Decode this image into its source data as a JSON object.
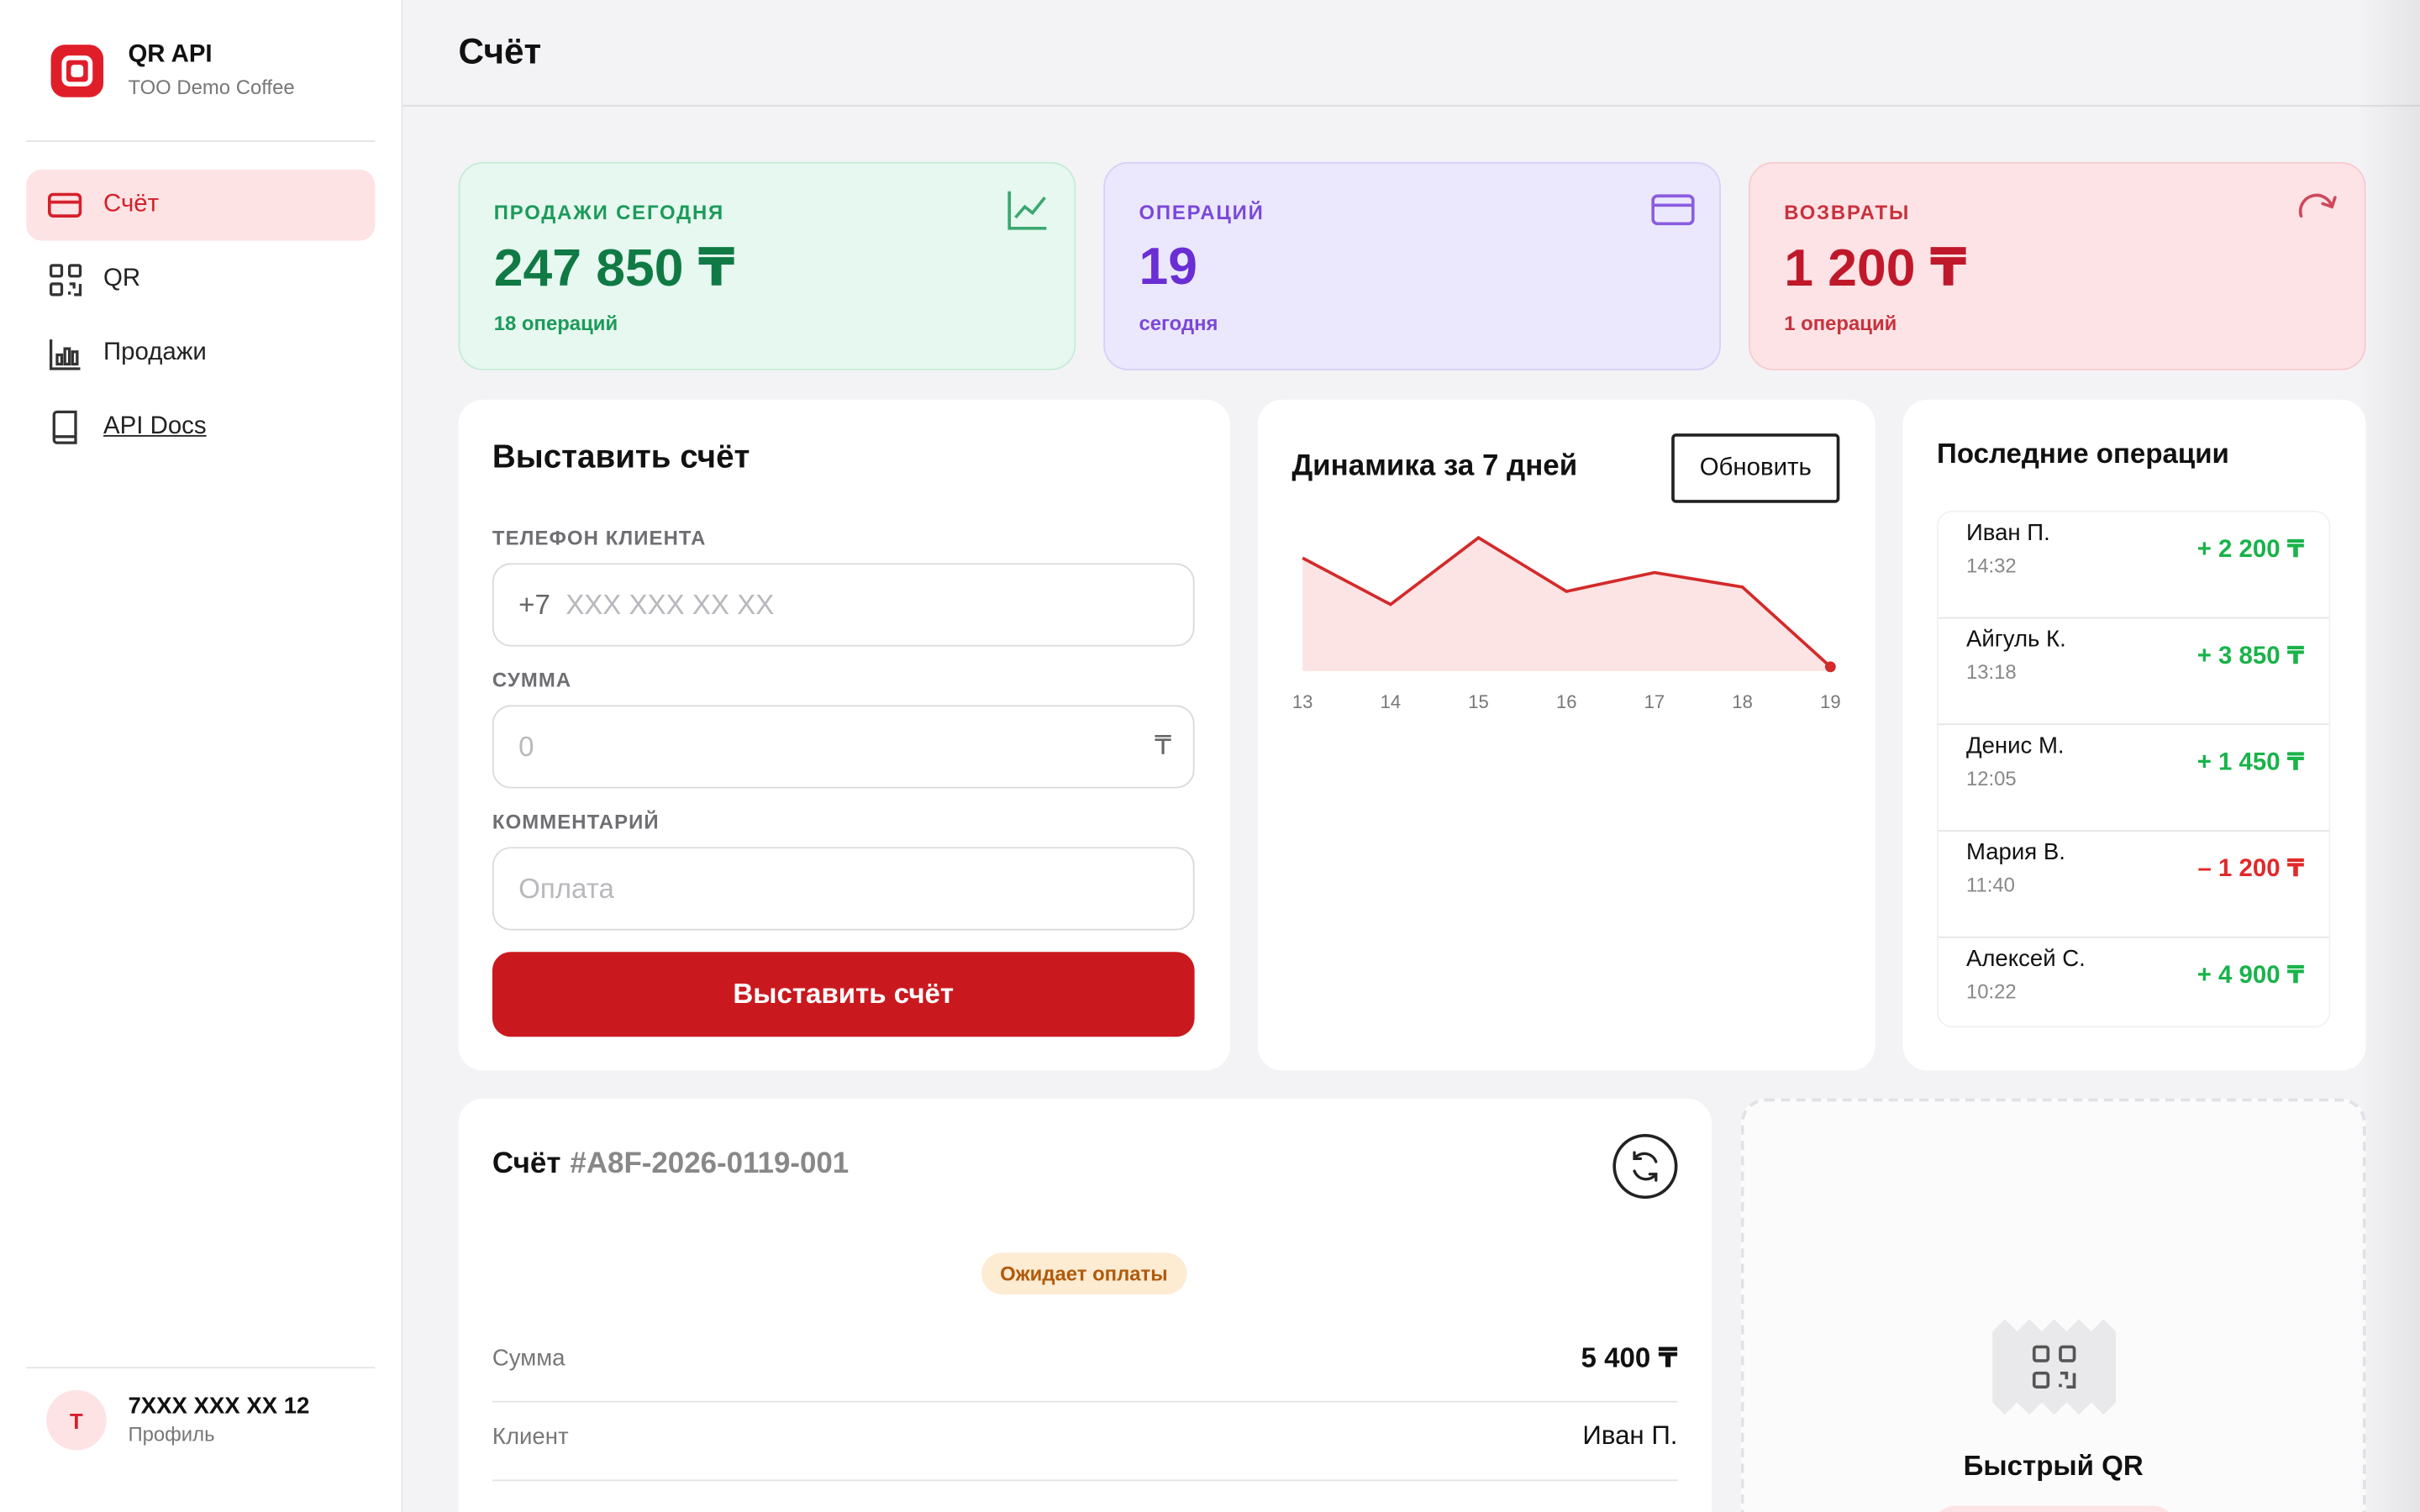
{
  "brand": {
    "title": "QR API",
    "subtitle": "TOO Demo Coffee"
  },
  "sidebar": {
    "items": [
      {
        "label": "Счёт",
        "icon": "card-icon",
        "active": true
      },
      {
        "label": "QR",
        "icon": "qr-icon",
        "active": false
      },
      {
        "label": "Продажи",
        "icon": "bar-chart-icon",
        "active": false
      },
      {
        "label": "API Docs",
        "icon": "book-icon",
        "active": false
      }
    ]
  },
  "profile": {
    "initial": "T",
    "phone": "7XXX XXX XX 12",
    "label": "Профиль"
  },
  "header": {
    "title": "Счёт"
  },
  "stats": [
    {
      "label": "ПРОДАЖИ СЕГОДНЯ",
      "value": "247 850 ₸",
      "sub": "18 операций",
      "icon": "trend-icon"
    },
    {
      "label": "ОПЕРАЦИЙ",
      "value": "19",
      "sub": "сегодня",
      "icon": "card-icon"
    },
    {
      "label": "ВОЗВРАТЫ",
      "value": "1 200 ₸",
      "sub": "1 операций",
      "icon": "redo-icon"
    }
  ],
  "invoice_form": {
    "title": "Выставить счёт",
    "phone_label": "ТЕЛЕФОН КЛИЕНТА",
    "phone_prefix": "+7",
    "phone_placeholder": "XXX XXX XX XX",
    "amount_label": "СУММА",
    "amount_placeholder": "0",
    "currency": "₸",
    "comment_label": "КОММЕНТАРИЙ",
    "comment_placeholder": "Оплата",
    "submit_label": "Выставить счёт"
  },
  "chart": {
    "title": "Динамика за 7 дней",
    "refresh_label": "Обновить",
    "accent": "#d42a2a"
  },
  "chart_data": {
    "type": "area",
    "x": [
      "13",
      "14",
      "15",
      "16",
      "17",
      "18",
      "19"
    ],
    "values": [
      78,
      46,
      92,
      55,
      68,
      58,
      3
    ],
    "title": "Динамика за 7 дней",
    "xlabel": "",
    "ylabel": "",
    "grid": false
  },
  "operations": {
    "title": "Последние операции",
    "items": [
      {
        "name": "Иван П.",
        "time": "14:32",
        "amount": "+ 2 200 ₸",
        "kind": "in"
      },
      {
        "name": "Айгуль К.",
        "time": "13:18",
        "amount": "+ 3 850 ₸",
        "kind": "in"
      },
      {
        "name": "Денис М.",
        "time": "12:05",
        "amount": "+ 1 450 ₸",
        "kind": "in"
      },
      {
        "name": "Мария В.",
        "time": "11:40",
        "amount": "– 1 200 ₸",
        "kind": "out"
      },
      {
        "name": "Алексей С.",
        "time": "10:22",
        "amount": "+ 4 900 ₸",
        "kind": "in"
      }
    ],
    "colors": {
      "in": "#19b34a",
      "out": "#e02a2a"
    }
  },
  "invoice_detail": {
    "title": "Счёт",
    "number": "#A8F-2026-0119-001",
    "status": "Ожидает оплаты",
    "rows": [
      {
        "key": "Сумма",
        "value": "5 400 ₸"
      },
      {
        "key": "Клиент",
        "value": "Иван П."
      }
    ]
  },
  "quick_qr": {
    "title": "Быстрый QR"
  }
}
